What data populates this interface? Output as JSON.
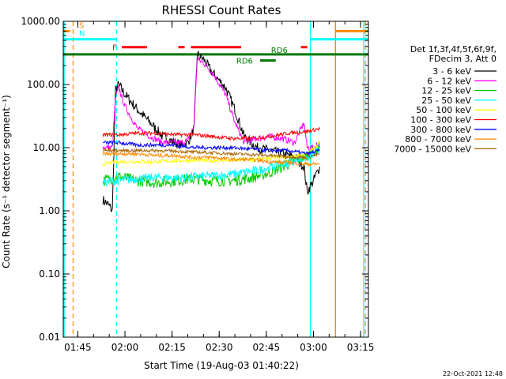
{
  "chart_data": {
    "type": "line",
    "title": "RHESSI Count Rates",
    "xlabel": "Start Time (19-Aug-03 01:40:22)",
    "ylabel": "Count Rate (s⁻¹ detector segment⁻¹)",
    "yscale": "log",
    "ylim": [
      0.01,
      1000
    ],
    "xlim": [
      "01:40:22",
      "03:17:30"
    ],
    "y_ticks": [
      "0.01",
      "0.10",
      "1.00",
      "10.00",
      "100.00",
      "1000.00"
    ],
    "x_ticks": [
      "01:45",
      "02:00",
      "02:15",
      "02:30",
      "02:45",
      "03:00",
      "03:15"
    ],
    "grid": false,
    "legend_placement": "right",
    "legend_header": [
      "Det 1f,3f,4f,5f,6f,9f,",
      "FDecim 3, Att 0"
    ],
    "series": [
      {
        "name": "3 - 6 keV",
        "color": "#000000",
        "points": [
          [
            "01:53:00",
            1.5
          ],
          [
            "01:55:00",
            1.2
          ],
          [
            "01:56:00",
            1.0
          ],
          [
            "01:57:00",
            80
          ],
          [
            "01:58:00",
            100
          ],
          [
            "02:00:00",
            70
          ],
          [
            "02:04:00",
            40
          ],
          [
            "02:08:00",
            25
          ],
          [
            "02:12:00",
            15
          ],
          [
            "02:16:00",
            12
          ],
          [
            "02:18:00",
            11
          ],
          [
            "02:20:00",
            12
          ],
          [
            "02:22:00",
            20
          ],
          [
            "02:23:00",
            300
          ],
          [
            "02:25:00",
            250
          ],
          [
            "02:28:00",
            150
          ],
          [
            "02:32:00",
            90
          ],
          [
            "02:35:00",
            40
          ],
          [
            "02:38:00",
            15
          ],
          [
            "02:42:00",
            10
          ],
          [
            "02:46:00",
            9
          ],
          [
            "02:50:00",
            8
          ],
          [
            "02:54:00",
            7
          ],
          [
            "02:57:00",
            5
          ],
          [
            "02:58:00",
            2
          ],
          [
            "03:00:00",
            3
          ],
          [
            "03:02:00",
            5
          ]
        ]
      },
      {
        "name": "6 - 12 keV",
        "color": "#ff00ff",
        "points": [
          [
            "01:53:00",
            10
          ],
          [
            "01:55:00",
            10
          ],
          [
            "01:56:00",
            10
          ],
          [
            "01:57:00",
            60
          ],
          [
            "01:58:00",
            90
          ],
          [
            "02:00:00",
            45
          ],
          [
            "02:04:00",
            20
          ],
          [
            "02:08:00",
            15
          ],
          [
            "02:12:00",
            12
          ],
          [
            "02:16:00",
            12
          ],
          [
            "02:18:00",
            12
          ],
          [
            "02:20:00",
            13
          ],
          [
            "02:22:00",
            22
          ],
          [
            "02:23:00",
            250
          ],
          [
            "02:25:00",
            220
          ],
          [
            "02:28:00",
            150
          ],
          [
            "02:32:00",
            70
          ],
          [
            "02:35:00",
            25
          ],
          [
            "02:38:00",
            12
          ],
          [
            "02:42:00",
            14
          ],
          [
            "02:46:00",
            15
          ],
          [
            "02:50:00",
            14
          ],
          [
            "02:54:00",
            12
          ],
          [
            "02:57:00",
            25
          ],
          [
            "02:58:00",
            10
          ],
          [
            "03:00:00",
            10
          ],
          [
            "03:02:00",
            12
          ]
        ]
      },
      {
        "name": "12 - 25 keV",
        "color": "#00cc00",
        "points": [
          [
            "01:53:00",
            3.0
          ],
          [
            "01:58:00",
            3.5
          ],
          [
            "02:04:00",
            3.0
          ],
          [
            "02:10:00",
            2.8
          ],
          [
            "02:16:00",
            3.0
          ],
          [
            "02:22:00",
            3.2
          ],
          [
            "02:28:00",
            3.0
          ],
          [
            "02:34:00",
            3.0
          ],
          [
            "02:40:00",
            3.3
          ],
          [
            "02:46:00",
            4.0
          ],
          [
            "02:52:00",
            5.5
          ],
          [
            "02:58:00",
            7.5
          ],
          [
            "03:02:00",
            10
          ]
        ]
      },
      {
        "name": "25 - 50 keV",
        "color": "#00ffff",
        "points": [
          [
            "01:53:00",
            2.8
          ],
          [
            "01:58:00",
            3.0
          ],
          [
            "02:04:00",
            3.2
          ],
          [
            "02:10:00",
            3.4
          ],
          [
            "02:16:00",
            3.3
          ],
          [
            "02:22:00",
            3.5
          ],
          [
            "02:28:00",
            3.6
          ],
          [
            "02:34:00",
            3.8
          ],
          [
            "02:40:00",
            4.2
          ],
          [
            "02:46:00",
            4.8
          ],
          [
            "02:52:00",
            5.8
          ],
          [
            "02:58:00",
            7.0
          ],
          [
            "03:02:00",
            9
          ]
        ]
      },
      {
        "name": "50 - 100 keV",
        "color": "#ffff00",
        "points": [
          [
            "01:53:00",
            5.5
          ],
          [
            "01:58:00",
            6.0
          ],
          [
            "02:04:00",
            6.0
          ],
          [
            "02:10:00",
            6.0
          ],
          [
            "02:16:00",
            6.2
          ],
          [
            "02:22:00",
            6.3
          ],
          [
            "02:28:00",
            6.2
          ],
          [
            "02:34:00",
            6.3
          ],
          [
            "02:40:00",
            6.5
          ],
          [
            "02:46:00",
            6.8
          ],
          [
            "02:52:00",
            7.0
          ],
          [
            "02:58:00",
            8.0
          ],
          [
            "03:02:00",
            12
          ]
        ]
      },
      {
        "name": "100 - 300 keV",
        "color": "#ff0000",
        "points": [
          [
            "01:53:00",
            16
          ],
          [
            "01:58:00",
            16
          ],
          [
            "02:04:00",
            17
          ],
          [
            "02:10:00",
            17
          ],
          [
            "02:16:00",
            16
          ],
          [
            "02:22:00",
            16
          ],
          [
            "02:28:00",
            15
          ],
          [
            "02:34:00",
            14
          ],
          [
            "02:40:00",
            14
          ],
          [
            "02:46:00",
            15
          ],
          [
            "02:52:00",
            17
          ],
          [
            "02:58:00",
            18
          ],
          [
            "03:02:00",
            20
          ]
        ]
      },
      {
        "name": "300 - 800 keV",
        "color": "#0000ff",
        "points": [
          [
            "01:53:00",
            12
          ],
          [
            "01:58:00",
            12
          ],
          [
            "02:04:00",
            11
          ],
          [
            "02:10:00",
            11
          ],
          [
            "02:16:00",
            11
          ],
          [
            "02:22:00",
            10
          ],
          [
            "02:28:00",
            10
          ],
          [
            "02:34:00",
            10
          ],
          [
            "02:40:00",
            9.5
          ],
          [
            "02:46:00",
            9
          ],
          [
            "02:52:00",
            9
          ],
          [
            "02:58:00",
            8
          ],
          [
            "03:02:00",
            9
          ]
        ]
      },
      {
        "name": "800 - 7000 keV",
        "color": "#ff8800",
        "points": [
          [
            "01:53:00",
            8
          ],
          [
            "01:58:00",
            8
          ],
          [
            "02:04:00",
            8
          ],
          [
            "02:10:00",
            7.5
          ],
          [
            "02:16:00",
            7.5
          ],
          [
            "02:22:00",
            7
          ],
          [
            "02:28:00",
            7
          ],
          [
            "02:34:00",
            6.5
          ],
          [
            "02:40:00",
            6.5
          ],
          [
            "02:46:00",
            6
          ],
          [
            "02:52:00",
            5.8
          ],
          [
            "02:58:00",
            5.5
          ],
          [
            "03:02:00",
            5.5
          ]
        ]
      },
      {
        "name": "7000 - 15000 keV",
        "color": "#aa6600",
        "points": [
          [
            "01:53:00",
            9
          ],
          [
            "01:58:00",
            9
          ],
          [
            "02:04:00",
            9
          ],
          [
            "02:10:00",
            9
          ],
          [
            "02:16:00",
            8.8
          ],
          [
            "02:22:00",
            8.5
          ],
          [
            "02:28:00",
            8.3
          ],
          [
            "02:34:00",
            8
          ],
          [
            "02:40:00",
            7.8
          ],
          [
            "02:46:00",
            7.5
          ],
          [
            "02:52:00",
            7.2
          ],
          [
            "02:58:00",
            7
          ],
          [
            "03:02:00",
            8
          ]
        ]
      }
    ],
    "annotations": [
      {
        "label": "S",
        "color": "#ff8800",
        "y": 700,
        "x_range": [
          "01:40:22",
          "01:42:30"
        ]
      },
      {
        "label": "N",
        "color": "#00ffff",
        "y": 520,
        "x_range": [
          "01:40:22",
          "01:57:30"
        ]
      },
      {
        "label": "F",
        "color": "#ff0000",
        "y": 390,
        "x_range": [
          "01:59:00",
          "02:07:00"
        ]
      },
      {
        "label": "RD6",
        "color": "#007700",
        "y": 240,
        "x_range": [
          "02:43:00",
          "02:48:00"
        ]
      },
      {
        "label": "RD6",
        "color": "#007700",
        "y": 300,
        "x_range": [
          "01:40:22",
          "03:17:30"
        ]
      }
    ],
    "segments": [
      {
        "color": "#ff8800",
        "y": 700,
        "x": [
          "03:07:00",
          "03:17:30"
        ]
      },
      {
        "color": "#00ffff",
        "y": 520,
        "x": [
          "02:59:00",
          "03:17:30"
        ]
      },
      {
        "color": "#ff0000",
        "y": 390,
        "x": [
          "02:17:00",
          "02:19:00"
        ]
      },
      {
        "color": "#ff0000",
        "y": 390,
        "x": [
          "02:21:00",
          "02:37:00"
        ]
      },
      {
        "color": "#ff0000",
        "y": 390,
        "x": [
          "02:56:00",
          "02:58:00"
        ]
      }
    ],
    "vlines": [
      {
        "time": "01:40:40",
        "color": "#00ffff",
        "style": "solid"
      },
      {
        "time": "01:43:30",
        "color": "#ff8800",
        "style": "dashed"
      },
      {
        "time": "01:57:20",
        "color": "#00ffff",
        "style": "dashed"
      },
      {
        "time": "02:59:00",
        "color": "#00ffff",
        "style": "solid"
      },
      {
        "time": "03:07:00",
        "color": "#cc8800",
        "style": "solid"
      },
      {
        "time": "03:16:00",
        "color": "#00ffff",
        "style": "solid"
      },
      {
        "time": "03:16:30",
        "color": "#ff8800",
        "style": "dashed"
      }
    ],
    "timestamp": "22-Oct-2021 12:48"
  }
}
